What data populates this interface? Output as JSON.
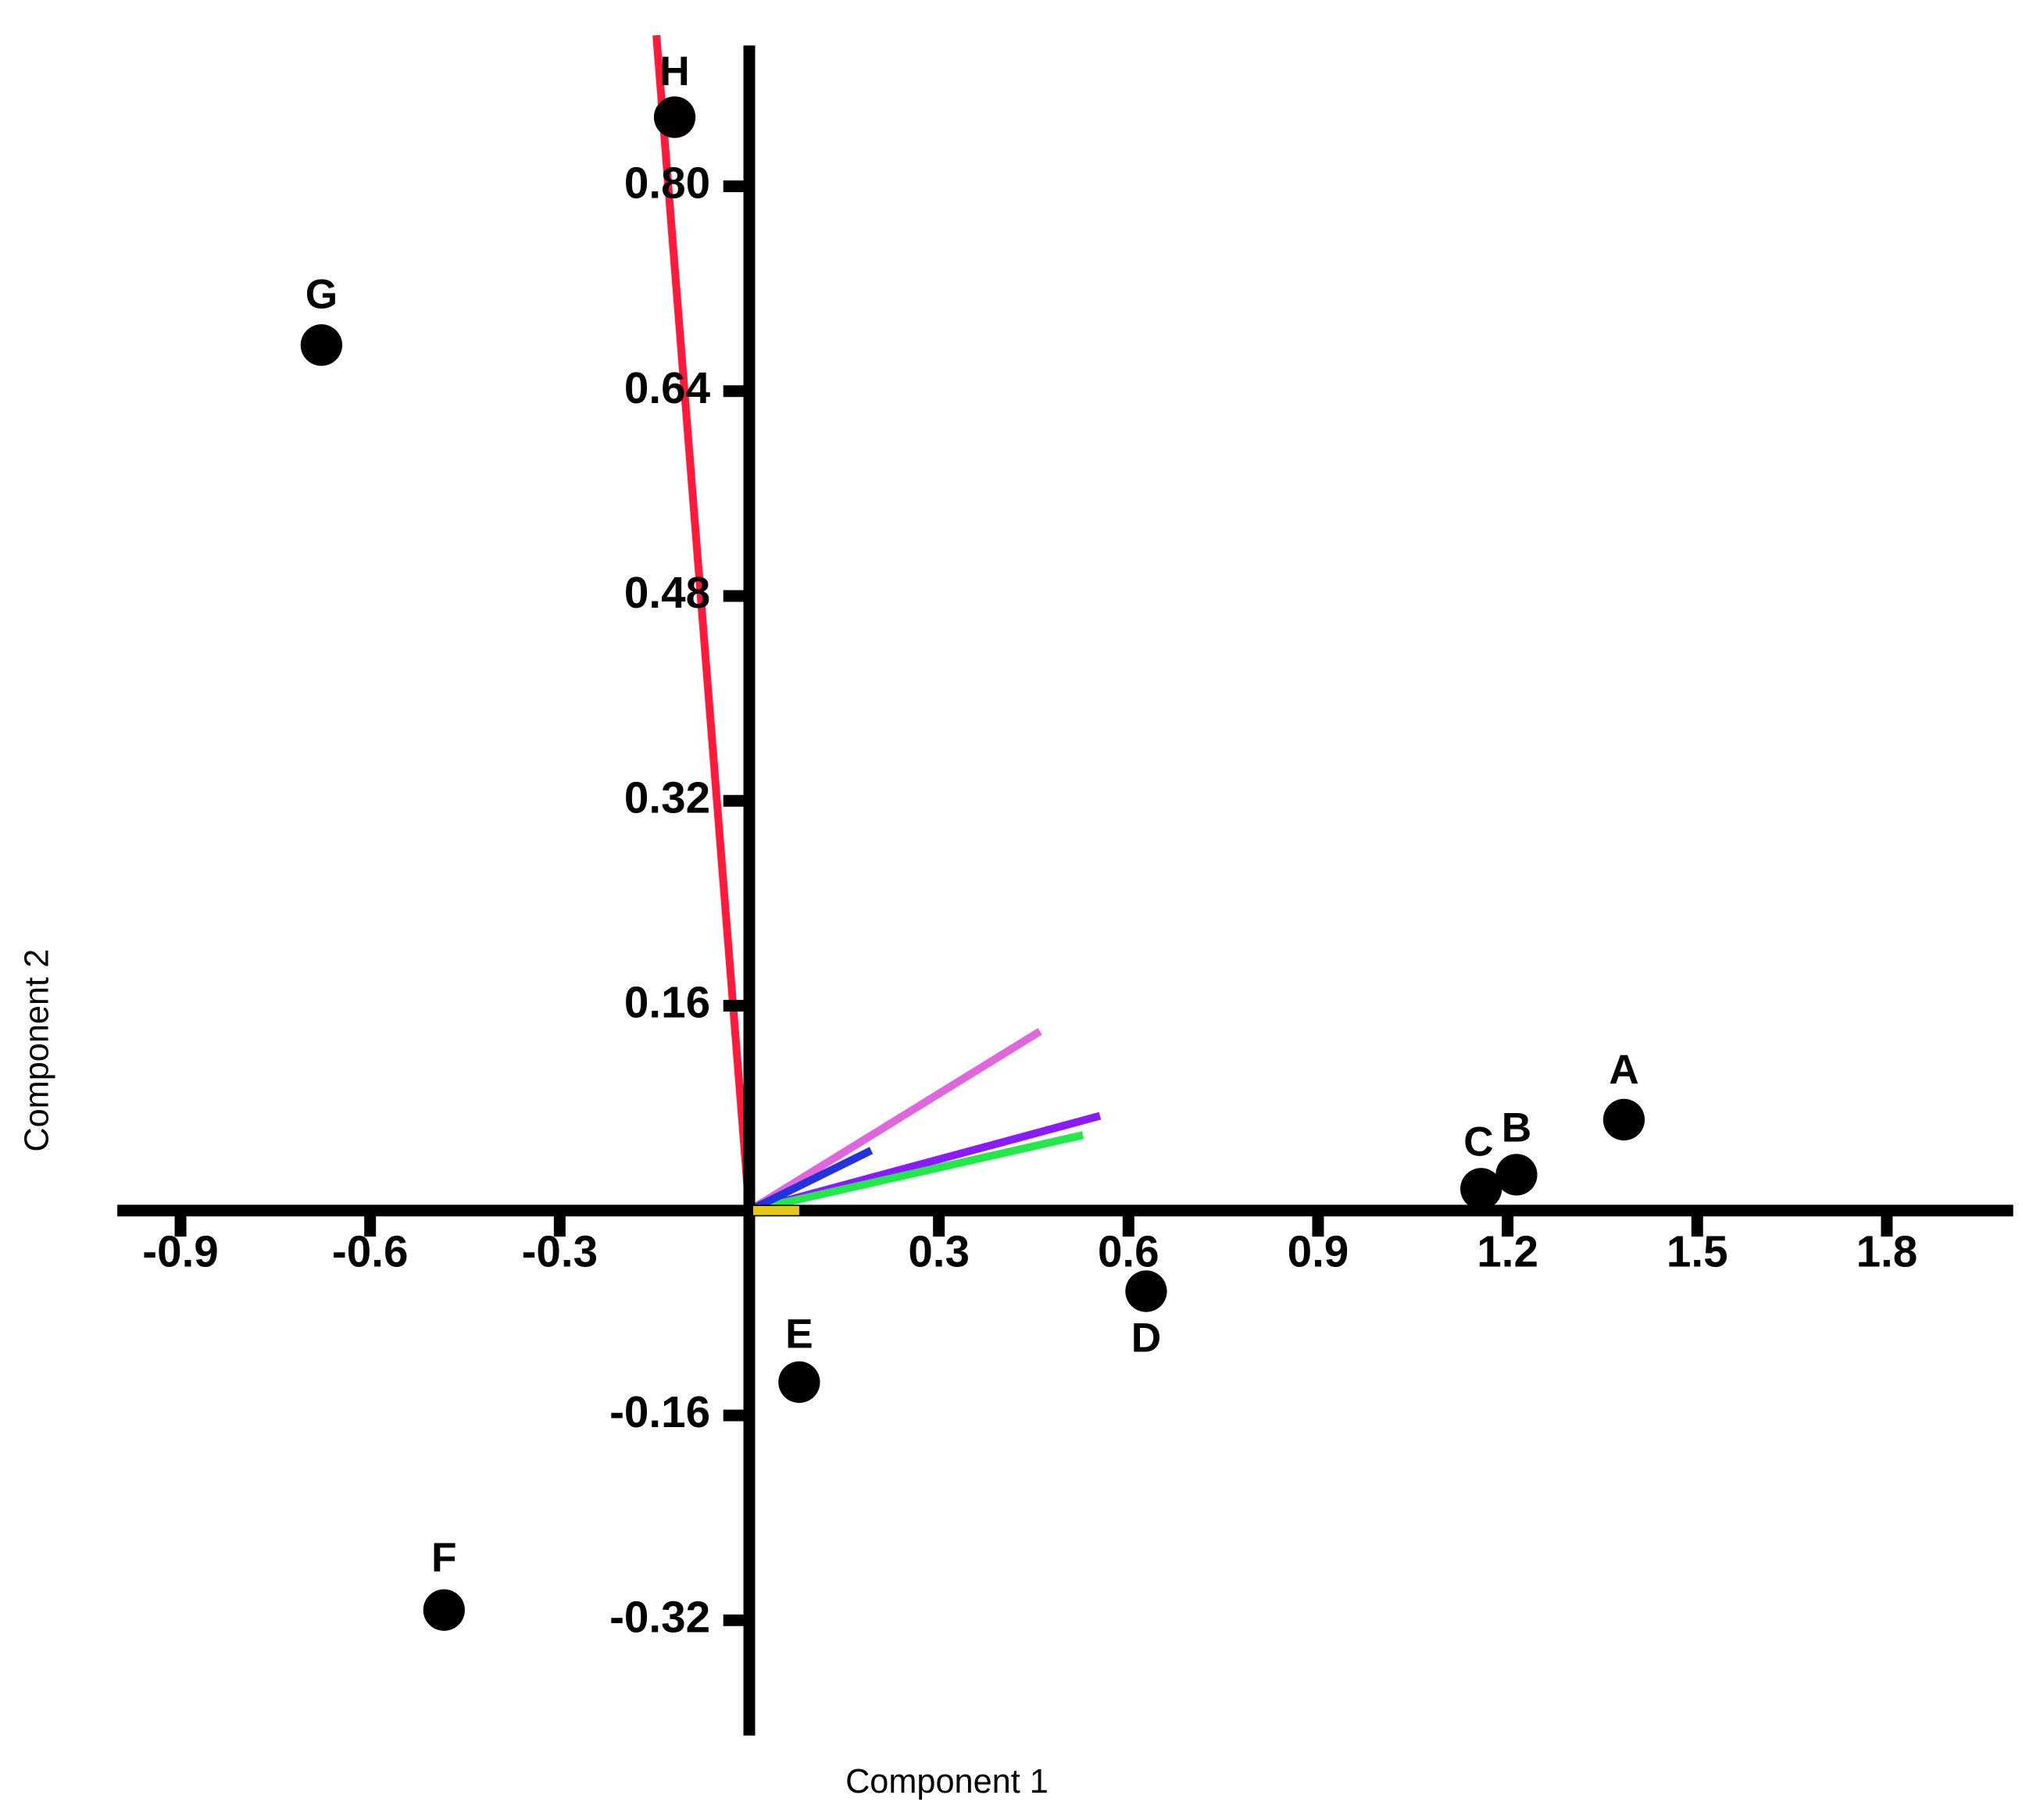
{
  "chart_data": {
    "type": "biplot",
    "x_label": "Component 1",
    "y_label": "Component 2",
    "xlim": [
      -1.0,
      2.0
    ],
    "ylim": [
      -0.41,
      0.91
    ],
    "xticks": [
      -0.9,
      -0.6,
      -0.3,
      0.3,
      0.6,
      0.9,
      1.2,
      1.5,
      1.8
    ],
    "yticks": [
      {
        "value": 0.8,
        "label": "0.80"
      },
      0.64,
      0.48,
      0.32,
      0.16,
      -0.16,
      -0.32
    ],
    "points": {
      "color": "#000000",
      "labels": [
        "A",
        "B",
        "C",
        "D",
        "E",
        "F",
        "G",
        "H"
      ],
      "x": [
        1.384,
        1.214,
        1.158,
        0.628,
        0.079,
        -0.483,
        -0.677,
        -0.118
      ],
      "y": [
        0.071,
        0.028,
        0.017,
        -0.063,
        -0.134,
        -0.312,
        0.676,
        0.854
      ]
    },
    "vectors": {
      "colors": [
        "#ff1a3c",
        "#e066e0",
        "#8b1aff",
        "#22e84a",
        "#2233dd",
        "#e6c619"
      ],
      "x": [
        -0.147,
        0.46,
        0.555,
        0.528,
        0.193,
        0.079
      ],
      "y": [
        0.918,
        0.14,
        0.074,
        0.059,
        0.047,
        0
      ]
    }
  }
}
